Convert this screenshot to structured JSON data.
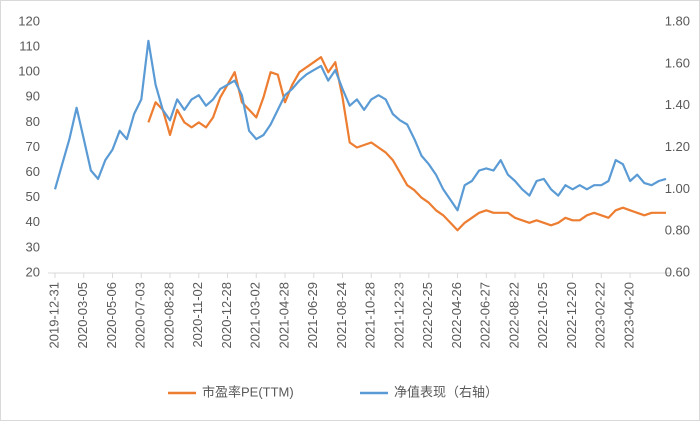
{
  "chart_data": {
    "type": "line",
    "categories": [
      "2019-12-31",
      null,
      null,
      null,
      "2020-03-05",
      null,
      null,
      null,
      "2020-05-06",
      null,
      null,
      null,
      "2020-07-03",
      null,
      null,
      null,
      "2020-08-28",
      null,
      null,
      null,
      "2020-11-02",
      null,
      null,
      null,
      "2020-12-28",
      null,
      null,
      null,
      "2021-03-02",
      null,
      null,
      null,
      "2021-04-28",
      null,
      null,
      null,
      "2021-06-29",
      null,
      null,
      null,
      "2021-08-24",
      null,
      null,
      null,
      "2021-10-28",
      null,
      null,
      null,
      "2021-12-23",
      null,
      null,
      null,
      "2022-02-25",
      null,
      null,
      null,
      "2022-04-26",
      null,
      null,
      null,
      "2022-06-27",
      null,
      null,
      null,
      "2022-08-22",
      null,
      null,
      null,
      "2022-10-25",
      null,
      null,
      null,
      "2022-12-20",
      null,
      null,
      null,
      "2023-02-22",
      null,
      null,
      null,
      "2023-04-20",
      null,
      null,
      null,
      null,
      null
    ],
    "series": [
      {
        "name": "市盈率PE(TTM)",
        "color": "#ED7D31",
        "values": [
          null,
          null,
          null,
          null,
          null,
          null,
          null,
          null,
          null,
          null,
          null,
          null,
          null,
          80,
          88,
          85,
          75,
          85,
          80,
          78,
          80,
          78,
          82,
          90,
          95,
          100,
          88,
          85,
          82,
          90,
          100,
          99,
          88,
          95,
          100,
          102,
          104,
          106,
          100,
          104,
          90,
          72,
          70,
          71,
          72,
          70,
          68,
          65,
          60,
          55,
          53,
          50,
          48,
          45,
          43,
          40,
          37,
          40,
          42,
          44,
          45,
          44,
          44,
          44,
          42,
          41,
          40,
          41,
          40,
          39,
          40,
          42,
          41,
          41,
          43,
          44,
          43,
          42,
          45,
          46,
          45,
          44,
          43,
          44,
          44,
          44
        ]
      },
      {
        "name": "净值表现（右轴）",
        "color": "#5B9BD5",
        "axis": "y2",
        "values": [
          1.0,
          1.12,
          1.24,
          1.39,
          1.24,
          1.09,
          1.05,
          1.14,
          1.19,
          1.28,
          1.24,
          1.36,
          1.43,
          1.71,
          1.5,
          1.38,
          1.33,
          1.43,
          1.38,
          1.43,
          1.45,
          1.4,
          1.43,
          1.48,
          1.5,
          1.52,
          1.45,
          1.28,
          1.24,
          1.26,
          1.31,
          1.38,
          1.45,
          1.48,
          1.52,
          1.55,
          1.57,
          1.59,
          1.52,
          1.57,
          1.48,
          1.4,
          1.43,
          1.38,
          1.43,
          1.45,
          1.43,
          1.36,
          1.33,
          1.31,
          1.24,
          1.16,
          1.12,
          1.07,
          1.0,
          0.95,
          0.9,
          1.02,
          1.04,
          1.09,
          1.1,
          1.09,
          1.14,
          1.07,
          1.04,
          1.0,
          0.97,
          1.04,
          1.05,
          1.0,
          0.97,
          1.02,
          1.0,
          1.02,
          1.0,
          1.02,
          1.02,
          1.04,
          1.14,
          1.12,
          1.04,
          1.07,
          1.03,
          1.02,
          1.04,
          1.05
        ]
      }
    ],
    "ylim": [
      20,
      120
    ],
    "yticks": [
      20,
      30,
      40,
      50,
      60,
      70,
      80,
      90,
      100,
      110,
      120
    ],
    "y2lim": [
      0.6,
      1.8
    ],
    "y2ticks": [
      {
        "value": 0.6,
        "label": "0.60"
      },
      {
        "value": 0.8,
        "label": "0.80"
      },
      {
        "value": 1.0,
        "label": "1.00"
      },
      {
        "value": 1.2,
        "label": "1.20"
      },
      {
        "value": 1.4,
        "label": "1.40"
      },
      {
        "value": 1.6,
        "label": "1.60"
      },
      {
        "value": 1.8,
        "label": "1.80"
      }
    ],
    "legend": "bottom"
  }
}
